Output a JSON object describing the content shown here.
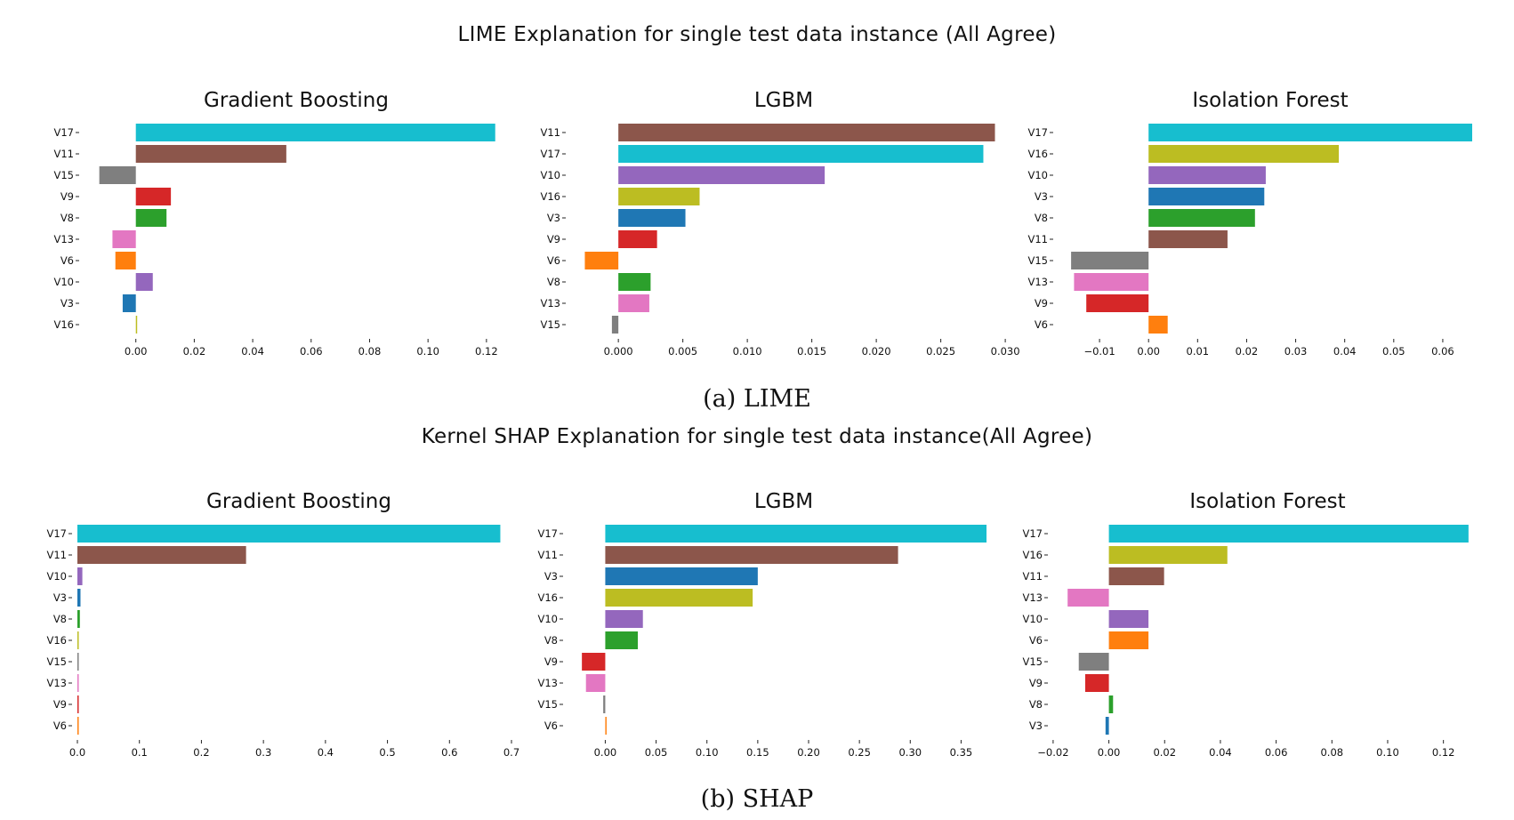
{
  "figure": {
    "lime_title": "LIME Explanation for single test data instance (All Agree)",
    "lime_caption": "(a) LIME",
    "shap_title": "Kernel SHAP Explanation for single test data instance(All Agree)",
    "shap_caption": "(b) SHAP"
  },
  "feature_colors": {
    "V3": "#1f77b4",
    "V6": "#ff7f0e",
    "V8": "#2ca02c",
    "V9": "#d62728",
    "V10": "#9467bd",
    "V11": "#8c564b",
    "V13": "#e377c2",
    "V15": "#7f7f7f",
    "V16": "#bcbd22",
    "V17": "#17becf"
  },
  "chart_data": [
    {
      "type": "bar",
      "orientation": "horizontal",
      "group": "LIME",
      "title": "Gradient Boosting",
      "categories": [
        "V17",
        "V11",
        "V15",
        "V9",
        "V8",
        "V13",
        "V6",
        "V10",
        "V3",
        "V16"
      ],
      "values": [
        0.123,
        0.0515,
        -0.0125,
        0.012,
        0.0105,
        -0.008,
        -0.007,
        0.0058,
        -0.0045,
        0.0004
      ],
      "xlim": [
        -0.013,
        0.124
      ],
      "xticks": [
        0.0,
        0.02,
        0.04,
        0.06,
        0.08,
        0.1,
        0.12
      ],
      "xtick_labels": [
        "0.00",
        "0.02",
        "0.04",
        "0.06",
        "0.08",
        "0.10",
        "0.12"
      ]
    },
    {
      "type": "bar",
      "orientation": "horizontal",
      "group": "LIME",
      "title": "LGBM",
      "categories": [
        "V11",
        "V17",
        "V10",
        "V16",
        "V3",
        "V9",
        "V6",
        "V8",
        "V13",
        "V15"
      ],
      "values": [
        0.0292,
        0.0283,
        0.016,
        0.0063,
        0.0052,
        0.003,
        -0.0026,
        0.0025,
        0.0024,
        -0.0005
      ],
      "xlim": [
        -0.0027,
        0.0302
      ],
      "xticks": [
        0.0,
        0.005,
        0.01,
        0.015,
        0.02,
        0.025,
        0.03
      ],
      "xtick_labels": [
        "0.000",
        "0.005",
        "0.010",
        "0.015",
        "0.020",
        "0.025",
        "0.030"
      ]
    },
    {
      "type": "bar",
      "orientation": "horizontal",
      "group": "LIME",
      "title": "Isolation Forest",
      "categories": [
        "V17",
        "V16",
        "V10",
        "V3",
        "V8",
        "V11",
        "V15",
        "V13",
        "V9",
        "V6"
      ],
      "values": [
        0.066,
        0.0388,
        0.0239,
        0.0236,
        0.0217,
        0.0161,
        -0.0158,
        -0.0152,
        -0.0127,
        0.0039
      ],
      "xlim": [
        -0.016,
        0.066
      ],
      "xticks": [
        -0.01,
        0.0,
        0.01,
        0.02,
        0.03,
        0.04,
        0.05,
        0.06
      ],
      "xtick_labels": [
        "−0.01",
        "0.00",
        "0.01",
        "0.02",
        "0.03",
        "0.04",
        "0.05",
        "0.06"
      ]
    },
    {
      "type": "bar",
      "orientation": "horizontal",
      "group": "SHAP",
      "title": "Gradient Boosting",
      "categories": [
        "V17",
        "V11",
        "V10",
        "V3",
        "V8",
        "V16",
        "V15",
        "V13",
        "V9",
        "V6"
      ],
      "values": [
        0.682,
        0.272,
        0.008,
        0.005,
        0.004,
        0.0015,
        0.0012,
        0.001,
        0.001,
        0.001
      ],
      "xlim": [
        0.0,
        0.7
      ],
      "xticks": [
        0.0,
        0.1,
        0.2,
        0.3,
        0.4,
        0.5,
        0.6,
        0.7
      ],
      "xtick_labels": [
        "0.0",
        "0.1",
        "0.2",
        "0.3",
        "0.4",
        "0.5",
        "0.6",
        "0.7"
      ]
    },
    {
      "type": "bar",
      "orientation": "horizontal",
      "group": "SHAP",
      "title": "LGBM",
      "categories": [
        "V17",
        "V11",
        "V3",
        "V16",
        "V10",
        "V8",
        "V9",
        "V13",
        "V15",
        "V6"
      ],
      "values": [
        0.375,
        0.288,
        0.15,
        0.145,
        0.037,
        0.032,
        -0.023,
        -0.019,
        -0.002,
        0.001
      ],
      "xlim": [
        -0.024,
        0.375
      ],
      "xticks": [
        0.0,
        0.05,
        0.1,
        0.15,
        0.2,
        0.25,
        0.3,
        0.35
      ],
      "xtick_labels": [
        "0.00",
        "0.05",
        "0.10",
        "0.15",
        "0.20",
        "0.25",
        "0.30",
        "0.35"
      ]
    },
    {
      "type": "bar",
      "orientation": "horizontal",
      "group": "SHAP",
      "title": "Isolation Forest",
      "categories": [
        "V17",
        "V16",
        "V11",
        "V13",
        "V10",
        "V6",
        "V15",
        "V9",
        "V8",
        "V3"
      ],
      "values": [
        0.129,
        0.0425,
        0.0198,
        -0.0148,
        0.0142,
        0.0142,
        -0.0108,
        -0.0085,
        0.0015,
        -0.0012
      ],
      "xlim": [
        -0.0155,
        0.13
      ],
      "xticks": [
        -0.02,
        0.0,
        0.02,
        0.04,
        0.06,
        0.08,
        0.1,
        0.12
      ],
      "xtick_labels": [
        "−0.02",
        "0.00",
        "0.02",
        "0.04",
        "0.06",
        "0.08",
        "0.10",
        "0.12"
      ]
    }
  ]
}
